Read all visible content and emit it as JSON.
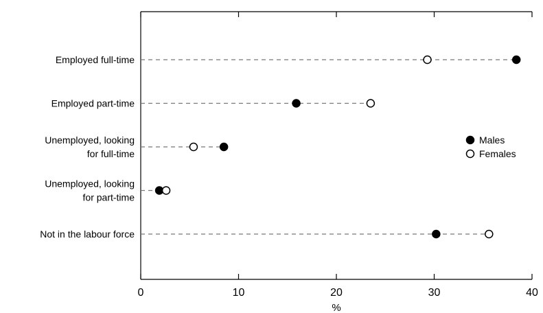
{
  "chart_data": {
    "type": "scatter",
    "subtype": "dot-plot",
    "orientation": "horizontal",
    "title": "",
    "xlabel": "%",
    "ylabel": "",
    "xlim": [
      0,
      40
    ],
    "xticks": [
      0,
      10,
      20,
      30,
      40
    ],
    "grid": false,
    "legend": "right",
    "categories": [
      [
        "Employed full-time"
      ],
      [
        "Employed part-time"
      ],
      [
        "Unemployed, looking",
        "for full-time"
      ],
      [
        "Unemployed, looking",
        "for part-time"
      ],
      [
        "Not in the labour force"
      ]
    ],
    "series": [
      {
        "name": "Males",
        "marker": "filled-circle",
        "values": [
          38.4,
          15.9,
          8.5,
          1.9,
          30.2
        ]
      },
      {
        "name": "Females",
        "marker": "open-circle",
        "values": [
          29.3,
          23.5,
          5.4,
          2.6,
          35.6
        ]
      }
    ]
  }
}
